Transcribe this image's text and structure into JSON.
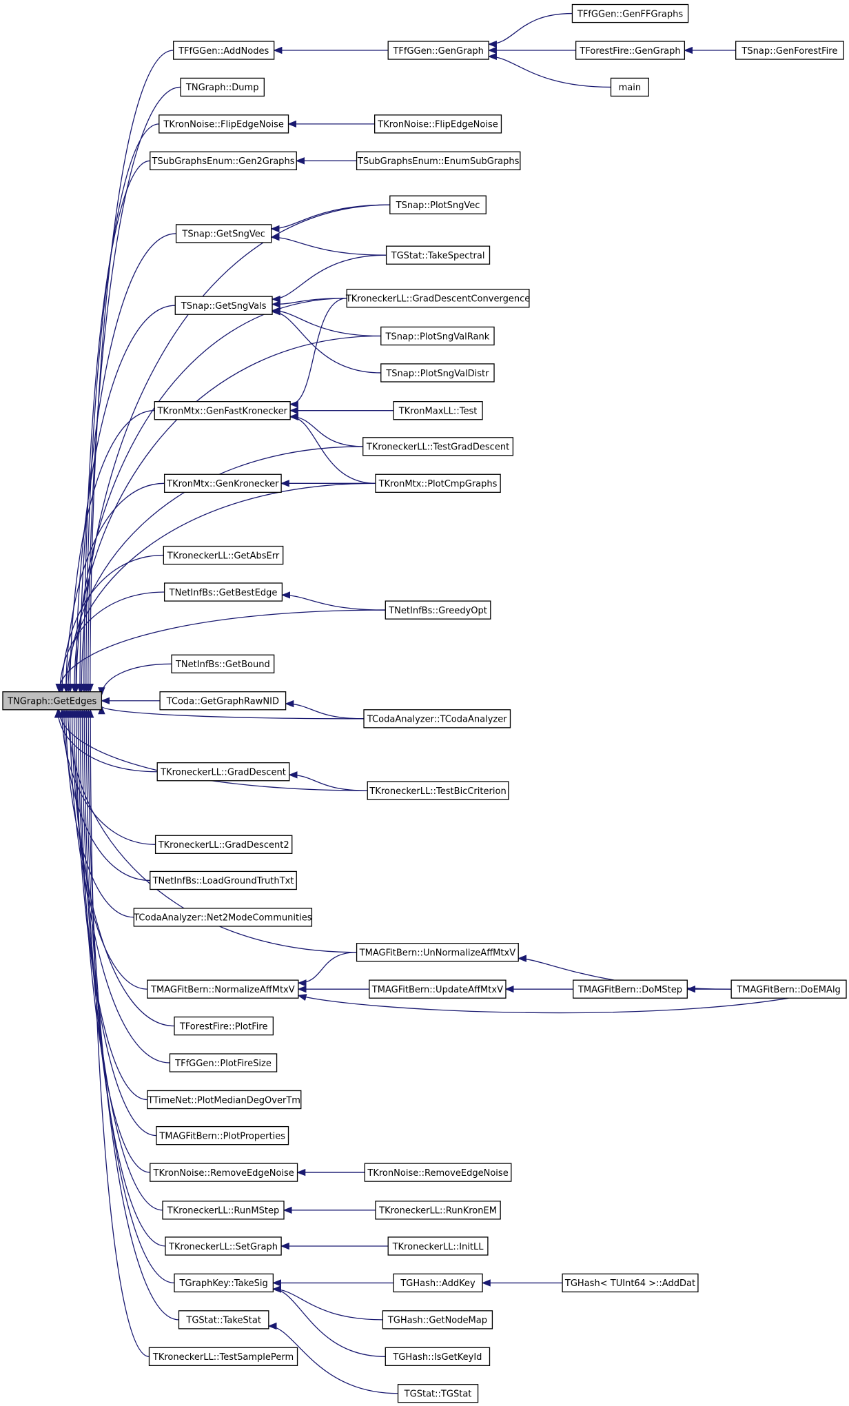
{
  "nodes": [
    {
      "label": "TNGraph::GetEdges"
    },
    {
      "label": "TFfGGen::AddNodes"
    },
    {
      "label": "TNGraph::Dump"
    },
    {
      "label": "TKronNoise::FlipEdgeNoise"
    },
    {
      "label": "TSubGraphsEnum::Gen2Graphs"
    },
    {
      "label": "TSnap::GetSngVec"
    },
    {
      "label": "TSnap::GetSngVals"
    },
    {
      "label": "TKronMtx::GenFastKronecker"
    },
    {
      "label": "TKronMtx::GenKronecker"
    },
    {
      "label": "TKroneckerLL::GetAbsErr"
    },
    {
      "label": "TNetInfBs::GetBestEdge"
    },
    {
      "label": "TNetInfBs::GetBound"
    },
    {
      "label": "TCoda::GetGraphRawNID"
    },
    {
      "label": "TKroneckerLL::GradDescent"
    },
    {
      "label": "TKroneckerLL::GradDescent2"
    },
    {
      "label": "TNetInfBs::LoadGroundTruthTxt"
    },
    {
      "label": "TCodaAnalyzer::Net2ModeCommunities"
    },
    {
      "label": "TMAGFitBern::NormalizeAffMtxV"
    },
    {
      "label": "TForestFire::PlotFire"
    },
    {
      "label": "TFfGGen::PlotFireSize"
    },
    {
      "label": "TTimeNet::PlotMedianDegOverTm"
    },
    {
      "label": "TMAGFitBern::PlotProperties"
    },
    {
      "label": "TKronNoise::RemoveEdgeNoise"
    },
    {
      "label": "TKroneckerLL::RunMStep"
    },
    {
      "label": "TKroneckerLL::SetGraph"
    },
    {
      "label": "TGraphKey::TakeSig"
    },
    {
      "label": "TGStat::TakeStat"
    },
    {
      "label": "TKroneckerLL::TestSamplePerm"
    },
    {
      "label": "TFfGGen::GenGraph"
    },
    {
      "label": "TKronNoise::FlipEdgeNoise"
    },
    {
      "label": "TSubGraphsEnum::EnumSubGraphs"
    },
    {
      "label": "TSnap::PlotSngVec"
    },
    {
      "label": "TGStat::TakeSpectral"
    },
    {
      "label": "TKroneckerLL::GradDescentConvergence"
    },
    {
      "label": "TSnap::PlotSngValRank"
    },
    {
      "label": "TSnap::PlotSngValDistr"
    },
    {
      "label": "TKronMaxLL::Test"
    },
    {
      "label": "TKroneckerLL::TestGradDescent"
    },
    {
      "label": "TKronMtx::PlotCmpGraphs"
    },
    {
      "label": "TNetInfBs::GreedyOpt"
    },
    {
      "label": "TCodaAnalyzer::TCodaAnalyzer"
    },
    {
      "label": "TKroneckerLL::TestBicCriterion"
    },
    {
      "label": "TMAGFitBern::UnNormalizeAffMtxV"
    },
    {
      "label": "TMAGFitBern::UpdateAffMtxV"
    },
    {
      "label": "TKronNoise::RemoveEdgeNoise"
    },
    {
      "label": "TKroneckerLL::RunKronEM"
    },
    {
      "label": "TKroneckerLL::InitLL"
    },
    {
      "label": "TGHash::AddKey"
    },
    {
      "label": "TGHash::GetNodeMap"
    },
    {
      "label": "TGHash::IsGetKeyId"
    },
    {
      "label": "TGStat::TGStat"
    },
    {
      "label": "TFfGGen::GenFFGraphs"
    },
    {
      "label": "TForestFire::GenGraph"
    },
    {
      "label": "main"
    },
    {
      "label": "TMAGFitBern::DoMStep"
    },
    {
      "label": "TGHash< TUInt64 >::AddDat"
    },
    {
      "label": "TSnap::GenForestFire"
    },
    {
      "label": "TMAGFitBern::DoEMAlg"
    }
  ]
}
